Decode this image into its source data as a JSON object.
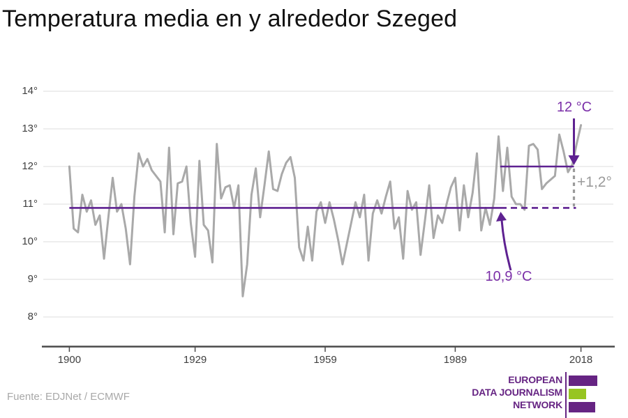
{
  "title": "Temperatura media en y alrededor Szeged",
  "source": "Fuente: EDJNet / ECMWF",
  "annotations": {
    "recent_mean_label": "12 °C",
    "baseline_mean_label": "10,9 °C",
    "delta_label": "+1,2°"
  },
  "logo": {
    "line1": "EUROPEAN",
    "line2": "DATA JOURNALISM",
    "line3": "NETWORK"
  },
  "colors": {
    "line_gray": "#a9a9a9",
    "annotation_purple": "#7b2fa8",
    "baseline_purple": "#5e2191",
    "logo_purple": "#662483",
    "logo_green": "#97c522",
    "delta_gray": "#9b9b9b",
    "grid_gray": "#e4e4e4",
    "axis_dark": "#4a4a4a"
  },
  "chart_data": {
    "type": "line",
    "title": "Temperatura media en y alrededor Szeged",
    "xlabel": "",
    "ylabel": "",
    "x_start": 1900,
    "x_end": 2018,
    "x_ticks": [
      1900,
      1929,
      1959,
      1989,
      2018
    ],
    "y_ticks": [
      "14°",
      "13°",
      "12°",
      "11°",
      "10°",
      "9°",
      "8°"
    ],
    "y_tick_values": [
      14,
      13,
      12,
      11,
      10,
      9,
      8
    ],
    "ylim": [
      8,
      14
    ],
    "grid": true,
    "values": [
      12.0,
      10.35,
      10.25,
      11.25,
      10.8,
      11.1,
      10.45,
      10.7,
      9.55,
      10.65,
      11.7,
      10.8,
      11.0,
      10.35,
      9.4,
      11.2,
      12.35,
      12.0,
      12.2,
      11.9,
      11.75,
      11.6,
      10.25,
      12.5,
      10.2,
      11.55,
      11.6,
      12.0,
      10.5,
      9.6,
      12.15,
      10.45,
      10.3,
      9.45,
      12.6,
      11.15,
      11.45,
      11.5,
      10.9,
      11.5,
      8.55,
      9.4,
      11.25,
      11.95,
      10.65,
      11.5,
      12.4,
      11.4,
      11.35,
      11.8,
      12.1,
      12.25,
      11.7,
      9.85,
      9.5,
      10.4,
      9.5,
      10.8,
      11.05,
      10.5,
      11.05,
      10.6,
      10.05,
      9.4,
      9.95,
      10.5,
      11.05,
      10.65,
      11.25,
      9.5,
      10.75,
      11.1,
      10.75,
      11.2,
      11.6,
      10.35,
      10.65,
      9.55,
      11.35,
      10.85,
      11.05,
      9.65,
      10.55,
      11.5,
      10.1,
      10.7,
      10.5,
      11.0,
      11.45,
      11.7,
      10.3,
      11.5,
      10.65,
      11.3,
      12.35,
      10.3,
      10.9,
      10.45,
      11.15,
      12.8,
      11.35,
      12.5,
      11.2,
      11.0,
      11.0,
      10.85,
      12.55,
      12.6,
      12.45,
      11.4,
      11.55,
      11.65,
      11.75,
      12.85,
      12.4,
      11.85,
      12.05,
      12.6,
      13.1
    ],
    "baselines": [
      {
        "label": "10,9 °C",
        "value": 10.9,
        "solid_span": [
          1900,
          2000
        ],
        "dashed_span": [
          2000,
          2017
        ]
      },
      {
        "label": "12 °C",
        "value": 12.0,
        "solid_span": [
          2000,
          2017
        ]
      }
    ],
    "delta_annotation": {
      "label": "+1,2°",
      "at_x": 2017,
      "from": 10.9,
      "to": 12.0
    },
    "legend": false
  }
}
